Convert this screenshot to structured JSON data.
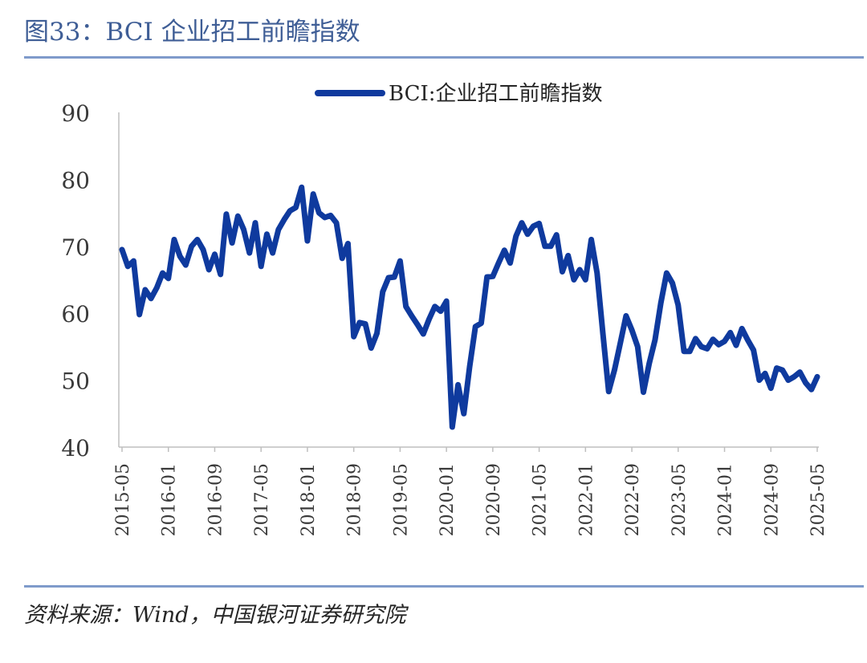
{
  "figure": {
    "title": "图33：BCI 企业招工前瞻指数",
    "source": "资料来源：Wind，中国银河证券研究院"
  },
  "colors": {
    "accent": "#3F5E96",
    "rule": "#7F9BCB",
    "series": "#0F3A9E",
    "axis": "#BFBFBF"
  },
  "chart_data": {
    "type": "line",
    "title": "",
    "xlabel": "",
    "ylabel": "",
    "ylim": [
      40,
      90
    ],
    "yticks": [
      40,
      50,
      60,
      70,
      80,
      90
    ],
    "grid": false,
    "legend_position": "top-center",
    "x_tick_labels": [
      "2015-05",
      "2016-01",
      "2016-09",
      "2017-05",
      "2018-01",
      "2018-09",
      "2019-05",
      "2020-01",
      "2020-09",
      "2021-05",
      "2022-01",
      "2022-09",
      "2023-05",
      "2024-01",
      "2024-09",
      "2025-05"
    ],
    "x": [
      "2015-05",
      "2015-06",
      "2015-07",
      "2015-08",
      "2015-09",
      "2015-10",
      "2015-11",
      "2015-12",
      "2016-01",
      "2016-02",
      "2016-03",
      "2016-04",
      "2016-05",
      "2016-06",
      "2016-07",
      "2016-08",
      "2016-09",
      "2016-10",
      "2016-11",
      "2016-12",
      "2017-01",
      "2017-02",
      "2017-03",
      "2017-04",
      "2017-05",
      "2017-06",
      "2017-07",
      "2017-08",
      "2017-09",
      "2017-10",
      "2017-11",
      "2017-12",
      "2018-01",
      "2018-02",
      "2018-03",
      "2018-04",
      "2018-05",
      "2018-06",
      "2018-07",
      "2018-08",
      "2018-09",
      "2018-10",
      "2018-11",
      "2018-12",
      "2019-01",
      "2019-02",
      "2019-03",
      "2019-04",
      "2019-05",
      "2019-06",
      "2019-07",
      "2019-08",
      "2019-09",
      "2019-10",
      "2019-11",
      "2019-12",
      "2020-01",
      "2020-02",
      "2020-03",
      "2020-04",
      "2020-05",
      "2020-06",
      "2020-07",
      "2020-08",
      "2020-09",
      "2020-10",
      "2020-11",
      "2020-12",
      "2021-01",
      "2021-02",
      "2021-03",
      "2021-04",
      "2021-05",
      "2021-06",
      "2021-07",
      "2021-08",
      "2021-09",
      "2021-10",
      "2021-11",
      "2021-12",
      "2022-01",
      "2022-02",
      "2022-03",
      "2022-04",
      "2022-05",
      "2022-06",
      "2022-07",
      "2022-08",
      "2022-09",
      "2022-10",
      "2022-11",
      "2022-12",
      "2023-01",
      "2023-02",
      "2023-03",
      "2023-04",
      "2023-05",
      "2023-06",
      "2023-07",
      "2023-08",
      "2023-09",
      "2023-10",
      "2023-11",
      "2023-12",
      "2024-01",
      "2024-02",
      "2024-03",
      "2024-04",
      "2024-05",
      "2024-06",
      "2024-07",
      "2024-08",
      "2024-09",
      "2024-10",
      "2024-11",
      "2024-12",
      "2025-01",
      "2025-02",
      "2025-03",
      "2025-04",
      "2025-05"
    ],
    "series": [
      {
        "name": "BCI:企业招工前瞻指数",
        "color": "#0F3A9E",
        "values": [
          69.5,
          67.0,
          67.8,
          59.8,
          63.5,
          62.2,
          63.8,
          66.0,
          65.2,
          71.0,
          68.5,
          67.2,
          70.0,
          71.0,
          69.5,
          66.5,
          68.8,
          65.8,
          74.8,
          70.5,
          74.5,
          72.5,
          69.0,
          73.5,
          67.0,
          71.8,
          69.0,
          72.5,
          74.0,
          75.3,
          75.8,
          78.8,
          70.8,
          77.8,
          75.0,
          74.3,
          74.6,
          73.5,
          68.2,
          70.4,
          56.5,
          58.6,
          58.4,
          54.8,
          57.0,
          63.2,
          65.3,
          65.4,
          67.8,
          61.0,
          59.6,
          58.3,
          56.9,
          59.1,
          61.0,
          60.3,
          61.8,
          43.0,
          49.3,
          45.0,
          52.0,
          58.0,
          58.5,
          65.4,
          65.5,
          67.5,
          69.4,
          67.5,
          71.5,
          73.5,
          71.8,
          73.0,
          73.4,
          70.0,
          70.0,
          71.7,
          66.2,
          68.6,
          65.0,
          66.5,
          65.0,
          71.0,
          66.0,
          57.0,
          48.3,
          51.5,
          55.5,
          59.6,
          57.5,
          55.0,
          48.2,
          52.5,
          56.0,
          61.5,
          66.0,
          64.5,
          61.2,
          54.3,
          54.3,
          56.2,
          55.0,
          54.7,
          56.1,
          55.3,
          55.8,
          57.1,
          55.2,
          57.7,
          56.0,
          54.5,
          50.0,
          51.0,
          48.8,
          51.8,
          51.5,
          50.0,
          50.5,
          51.2,
          49.6,
          48.6,
          50.5
        ]
      }
    ]
  }
}
